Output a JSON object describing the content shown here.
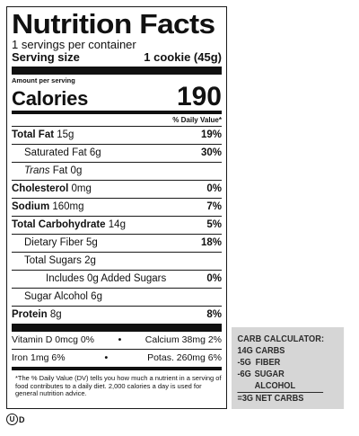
{
  "label": {
    "title": "Nutrition Facts",
    "servings": "1 servings per container",
    "serving_size_label": "Serving size",
    "serving_size_value": "1 cookie (45g)",
    "amount_per_serving": "Amount per serving",
    "calories_label": "Calories",
    "calories_value": "190",
    "dv_header": "% Daily Value*",
    "nutrients": [
      {
        "name": "Total Fat",
        "amount": "15g",
        "dv": "19%"
      },
      {
        "name": "Saturated Fat",
        "amount": "6g",
        "dv": "30%"
      },
      {
        "name": "Trans",
        "amount": "Fat 0g",
        "dv": ""
      },
      {
        "name": "Cholesterol",
        "amount": "0mg",
        "dv": "0%"
      },
      {
        "name": "Sodium",
        "amount": "160mg",
        "dv": "7%"
      },
      {
        "name": "Total Carbohydrate",
        "amount": "14g",
        "dv": "5%"
      },
      {
        "name": "Dietary Fiber",
        "amount": "5g",
        "dv": "18%"
      },
      {
        "name": "Total Sugars",
        "amount": "2g",
        "dv": ""
      },
      {
        "name": "Includes 0g Added Sugars",
        "amount": "",
        "dv": "0%"
      },
      {
        "name": "Sugar Alcohol",
        "amount": "6g",
        "dv": ""
      },
      {
        "name": "Protein",
        "amount": "8g",
        "dv": "8%"
      }
    ],
    "vitamins": [
      {
        "left": "Vitamin D 0mcg 0%",
        "right": "Calcium 38mg 2%"
      },
      {
        "left": "Iron 1mg 6%",
        "right": "Potas. 260mg 6%"
      }
    ],
    "bullet": "•",
    "footnote": "*The % Daily Value (DV) tells you how much a nutrient in a serving of food contributes to a daily diet. 2,000 calories a day is used for general nutrition advice."
  },
  "carb_calculator": {
    "title": "CARB CALCULATOR:",
    "lines": [
      {
        "num": "14G",
        "label": "CARBS"
      },
      {
        "num": "-5G",
        "label": "FIBER"
      },
      {
        "num": "-6G",
        "label": "SUGAR ALCOHOL"
      },
      {
        "num": "=3G",
        "label": "NET CARBS"
      }
    ]
  },
  "certification": {
    "symbol": "U",
    "suffix": "D"
  }
}
